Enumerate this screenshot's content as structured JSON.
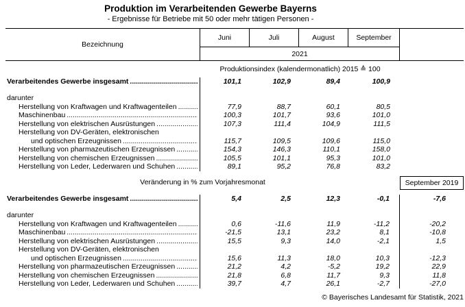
{
  "title": "Produktion im Verarbeitenden Gewerbe Bayerns",
  "subtitle": "- Ergebnisse für Betriebe mit 50 oder mehr tätigen Personen -",
  "table": {
    "label_column_header": "Bezeichnung",
    "months": [
      "Juni",
      "Juli",
      "August",
      "September"
    ],
    "year": "2021"
  },
  "sections": [
    {
      "header": "Produktionsindex (kalendermonatlich) 2015 ≙ 100",
      "has_extra_column": false,
      "rows": [
        {
          "label": "Verarbeitendes Gewerbe insgesamt",
          "indent": 0,
          "bold": true,
          "dots": true,
          "values": [
            "101,1",
            "102,9",
            "89,4",
            "100,9"
          ],
          "extra": ""
        },
        {
          "label": "darunter",
          "indent": 0,
          "bold": false,
          "dots": false,
          "values": [],
          "extra": ""
        },
        {
          "label": "Herstellung von Kraftwagen und Kraftwagenteilen",
          "indent": 1,
          "bold": false,
          "dots": true,
          "values": [
            "77,9",
            "88,7",
            "60,1",
            "80,5"
          ],
          "extra": ""
        },
        {
          "label": "Maschinenbau",
          "indent": 1,
          "bold": false,
          "dots": true,
          "values": [
            "100,3",
            "101,7",
            "93,6",
            "101,0"
          ],
          "extra": ""
        },
        {
          "label": "Herstellung von elektrischen Ausrüstungen",
          "indent": 1,
          "bold": false,
          "dots": true,
          "values": [
            "107,3",
            "111,4",
            "104,9",
            "111,5"
          ],
          "extra": ""
        },
        {
          "label": "Herstellung von DV-Geräten, elektronischen",
          "indent": 1,
          "bold": false,
          "dots": false,
          "values": [],
          "extra": ""
        },
        {
          "label": "und optischen Erzeugnissen",
          "indent": 2,
          "bold": false,
          "dots": true,
          "values": [
            "115,7",
            "109,5",
            "109,6",
            "115,0"
          ],
          "extra": ""
        },
        {
          "label": "Herstellung von pharmazeutischen Erzeugnissen",
          "indent": 1,
          "bold": false,
          "dots": true,
          "values": [
            "154,3",
            "146,3",
            "110,1",
            "158,0"
          ],
          "extra": ""
        },
        {
          "label": "Herstellung von chemischen Erzeugnissen",
          "indent": 1,
          "bold": false,
          "dots": true,
          "values": [
            "105,5",
            "101,1",
            "95,3",
            "101,0"
          ],
          "extra": ""
        },
        {
          "label": "Herstellung von Leder, Lederwaren und Schuhen",
          "indent": 1,
          "bold": false,
          "dots": true,
          "values": [
            "89,1",
            "95,2",
            "76,8",
            "83,2"
          ],
          "extra": ""
        }
      ]
    },
    {
      "header": "Veränderung in % zum Vorjahresmonat",
      "extra_column_header": "September 2019",
      "has_extra_column": true,
      "rows": [
        {
          "label": "Verarbeitendes Gewerbe insgesamt",
          "indent": 0,
          "bold": true,
          "dots": true,
          "values": [
            "5,4",
            "2,5",
            "12,3",
            "-0,1"
          ],
          "extra": "-7,6"
        },
        {
          "label": "darunter",
          "indent": 0,
          "bold": false,
          "dots": false,
          "values": [],
          "extra": ""
        },
        {
          "label": "Herstellung von Kraftwagen und Kraftwagenteilen",
          "indent": 1,
          "bold": false,
          "dots": true,
          "values": [
            "0,6",
            "-11,6",
            "11,9",
            "-11,2"
          ],
          "extra": "-20,2"
        },
        {
          "label": "Maschinenbau",
          "indent": 1,
          "bold": false,
          "dots": true,
          "values": [
            "-21,5",
            "13,1",
            "23,2",
            "8,1"
          ],
          "extra": "-10,8"
        },
        {
          "label": "Herstellung von elektrischen Ausrüstungen",
          "indent": 1,
          "bold": false,
          "dots": true,
          "values": [
            "15,5",
            "9,3",
            "14,0",
            "-2,1"
          ],
          "extra": "1,5"
        },
        {
          "label": "Herstellung von DV-Geräten, elektronischen",
          "indent": 1,
          "bold": false,
          "dots": false,
          "values": [],
          "extra": ""
        },
        {
          "label": "und optischen Erzeugnissen",
          "indent": 2,
          "bold": false,
          "dots": true,
          "values": [
            "15,6",
            "11,3",
            "18,0",
            "10,3"
          ],
          "extra": "-12,3"
        },
        {
          "label": "Herstellung von pharmazeutischen Erzeugnissen",
          "indent": 1,
          "bold": false,
          "dots": true,
          "values": [
            "21,2",
            "4,2",
            "-5,2",
            "19,2"
          ],
          "extra": "22,9"
        },
        {
          "label": "Herstellung von chemischen Erzeugnissen",
          "indent": 1,
          "bold": false,
          "dots": true,
          "values": [
            "21,8",
            "6,8",
            "11,7",
            "9,3"
          ],
          "extra": "11,8"
        },
        {
          "label": "Herstellung von Leder, Lederwaren und Schuhen",
          "indent": 1,
          "bold": false,
          "dots": true,
          "values": [
            "39,7",
            "4,7",
            "26,1",
            "-2,7"
          ],
          "extra": "-27,0"
        }
      ]
    }
  ],
  "footer": "© Bayerisches Landesamt für Statistik, 2021"
}
